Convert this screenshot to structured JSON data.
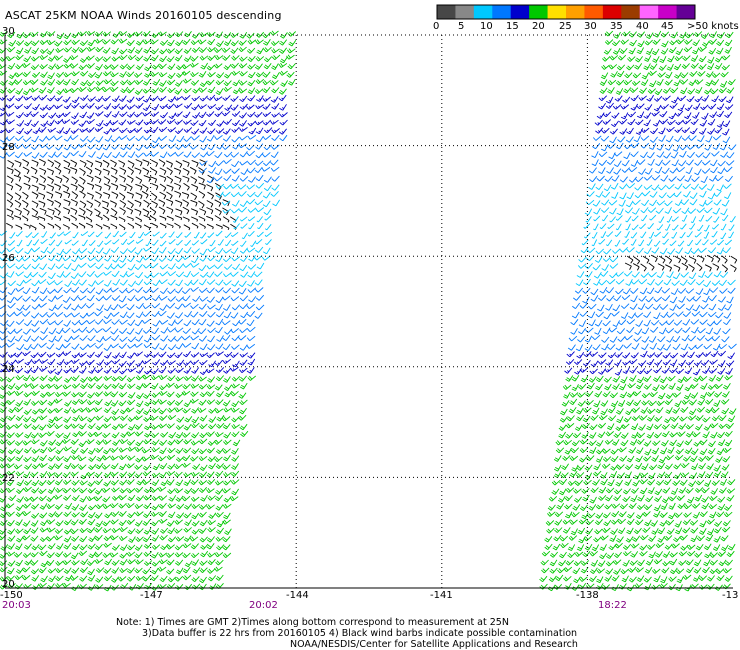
{
  "title": "ASCAT 25KM NOAA Winds 20160105 descending",
  "colorbar": {
    "colors": [
      "#474747",
      "#888888",
      "#00c8ff",
      "#0078ff",
      "#0000cc",
      "#00c800",
      "#ffe000",
      "#ffa000",
      "#ff5a00",
      "#dc0000",
      "#9b3c00",
      "#ff64ff",
      "#c800c8",
      "#640096"
    ],
    "labels": [
      "0",
      "5",
      "10",
      "15",
      "20",
      "25",
      "30",
      "35",
      "40",
      "45",
      ">50 knots"
    ]
  },
  "lat_labels": [
    "30",
    "28",
    "26",
    "24",
    "22",
    "20"
  ],
  "lon_labels": [
    "-150",
    "-147",
    "-144",
    "-141",
    "-138",
    "-13"
  ],
  "time_labels": [
    "20:03",
    "20:02",
    "18:22"
  ],
  "notes": {
    "line1": "Note: 1) Times are GMT 2)Times along bottom correspond to measurement at 25N",
    "line2": "3)Data buffer is 22 hrs from 20160105 4) Black wind barbs indicate possible contamination",
    "line3": "NOAA/NESDIS/Center for Satellite Applications and Research"
  },
  "wind_bands": [
    {
      "lat_from": 29.0,
      "lat_to": 30.1,
      "color": "#00c800",
      "speed_knots": 20
    },
    {
      "lat_from": 28.2,
      "lat_to": 29.0,
      "color": "#0000cc",
      "speed_knots": 15
    },
    {
      "lat_from": 27.4,
      "lat_to": 28.2,
      "color": "#0078ff",
      "speed_knots": 12
    },
    {
      "lat_from": 26.8,
      "lat_to": 27.4,
      "color": "#00c8ff",
      "speed_knots": 10
    },
    {
      "lat_from": 26.3,
      "lat_to": 26.8,
      "color": "#00c8ff",
      "speed_knots": 8
    },
    {
      "lat_from": 25.5,
      "lat_to": 26.3,
      "color": "#00c8ff",
      "speed_knots": 10
    },
    {
      "lat_from": 24.4,
      "lat_to": 25.5,
      "color": "#0078ff",
      "speed_knots": 12
    },
    {
      "lat_from": 23.9,
      "lat_to": 24.4,
      "color": "#0000cc",
      "speed_knots": 15
    },
    {
      "lat_from": 20.0,
      "lat_to": 23.9,
      "color": "#00c800",
      "speed_knots": 20
    }
  ],
  "contaminated_region": {
    "lat_from": 26.5,
    "lat_to": 27.8,
    "color": "#000000"
  }
}
